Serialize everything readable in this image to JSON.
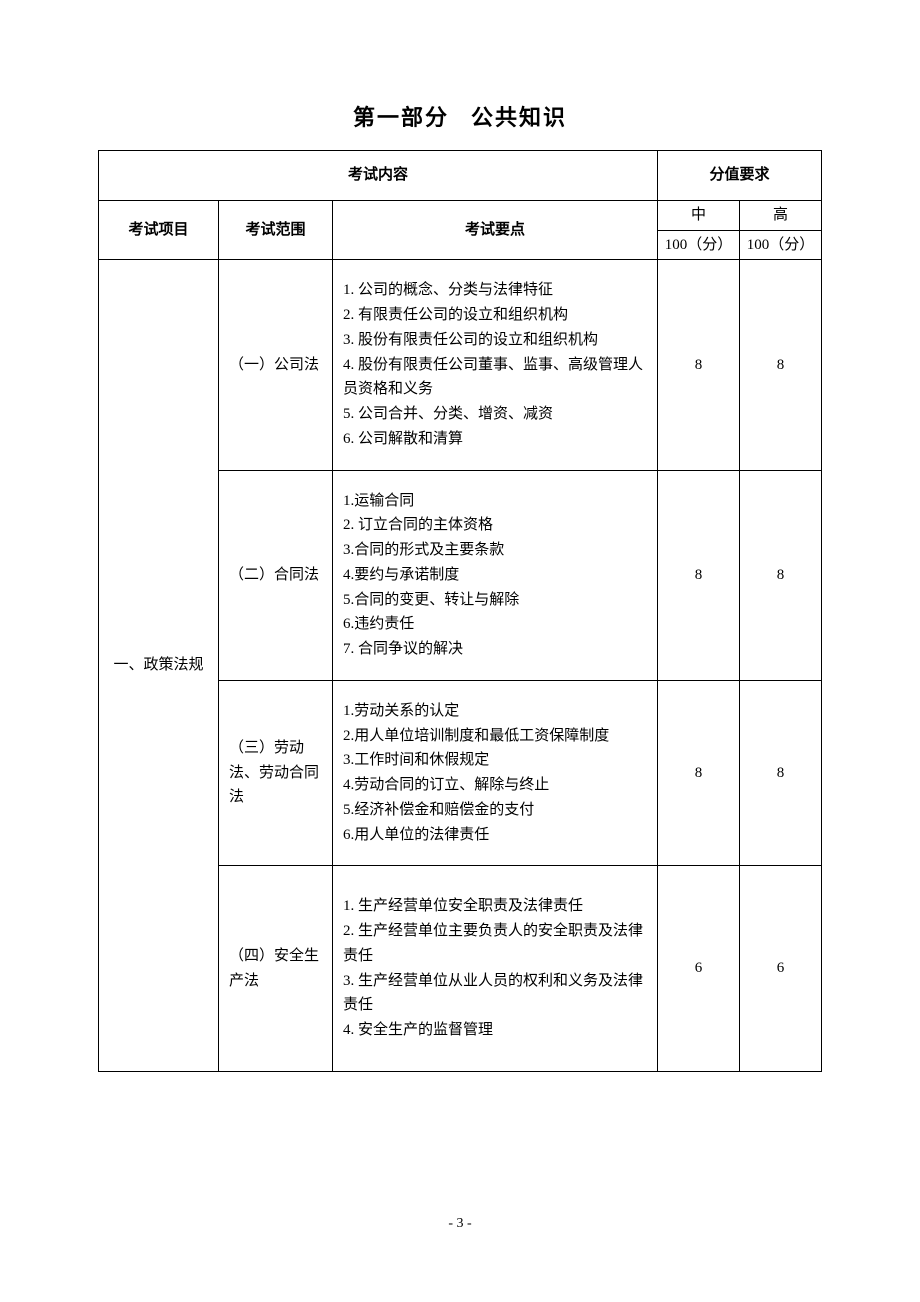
{
  "title_part1": "第一部分",
  "title_part2": "公共知识",
  "header": {
    "content": "考试内容",
    "score_req": "分值要求",
    "subject": "考试项目",
    "range": "考试范围",
    "points": "考试要点",
    "mid": "中",
    "high": "高",
    "mid_score": "100（分）",
    "high_score": "100（分）"
  },
  "subject_label": "一、政策法规",
  "rows": [
    {
      "range": "（一）公司法",
      "points": "1. 公司的概念、分类与法律特征\n2. 有限责任公司的设立和组织机构\n3. 股份有限责任公司的设立和组织机构\n4. 股份有限责任公司董事、监事、高级管理人员资格和义务\n5. 公司合并、分类、增资、减资\n6. 公司解散和清算",
      "mid": "8",
      "high": "8"
    },
    {
      "range": "（二）合同法",
      "points": "1.运输合同\n2. 订立合同的主体资格\n3.合同的形式及主要条款\n4.要约与承诺制度\n5.合同的变更、转让与解除\n6.违约责任\n7. 合同争议的解决",
      "mid": "8",
      "high": "8"
    },
    {
      "range": "（三）劳动法、劳动合同法",
      "points": "1.劳动关系的认定\n2.用人单位培训制度和最低工资保障制度\n3.工作时间和休假规定\n4.劳动合同的订立、解除与终止\n5.经济补偿金和赔偿金的支付\n6.用人单位的法律责任",
      "mid": "8",
      "high": "8"
    },
    {
      "range": "（四）安全生产法",
      "points": "1. 生产经营单位安全职责及法律责任\n2. 生产经营单位主要负责人的安全职责及法律责任\n3. 生产经营单位从业人员的权利和义务及法律责任\n4. 安全生产的监督管理",
      "mid": "6",
      "high": "6"
    }
  ],
  "page_number": "- 3 -"
}
